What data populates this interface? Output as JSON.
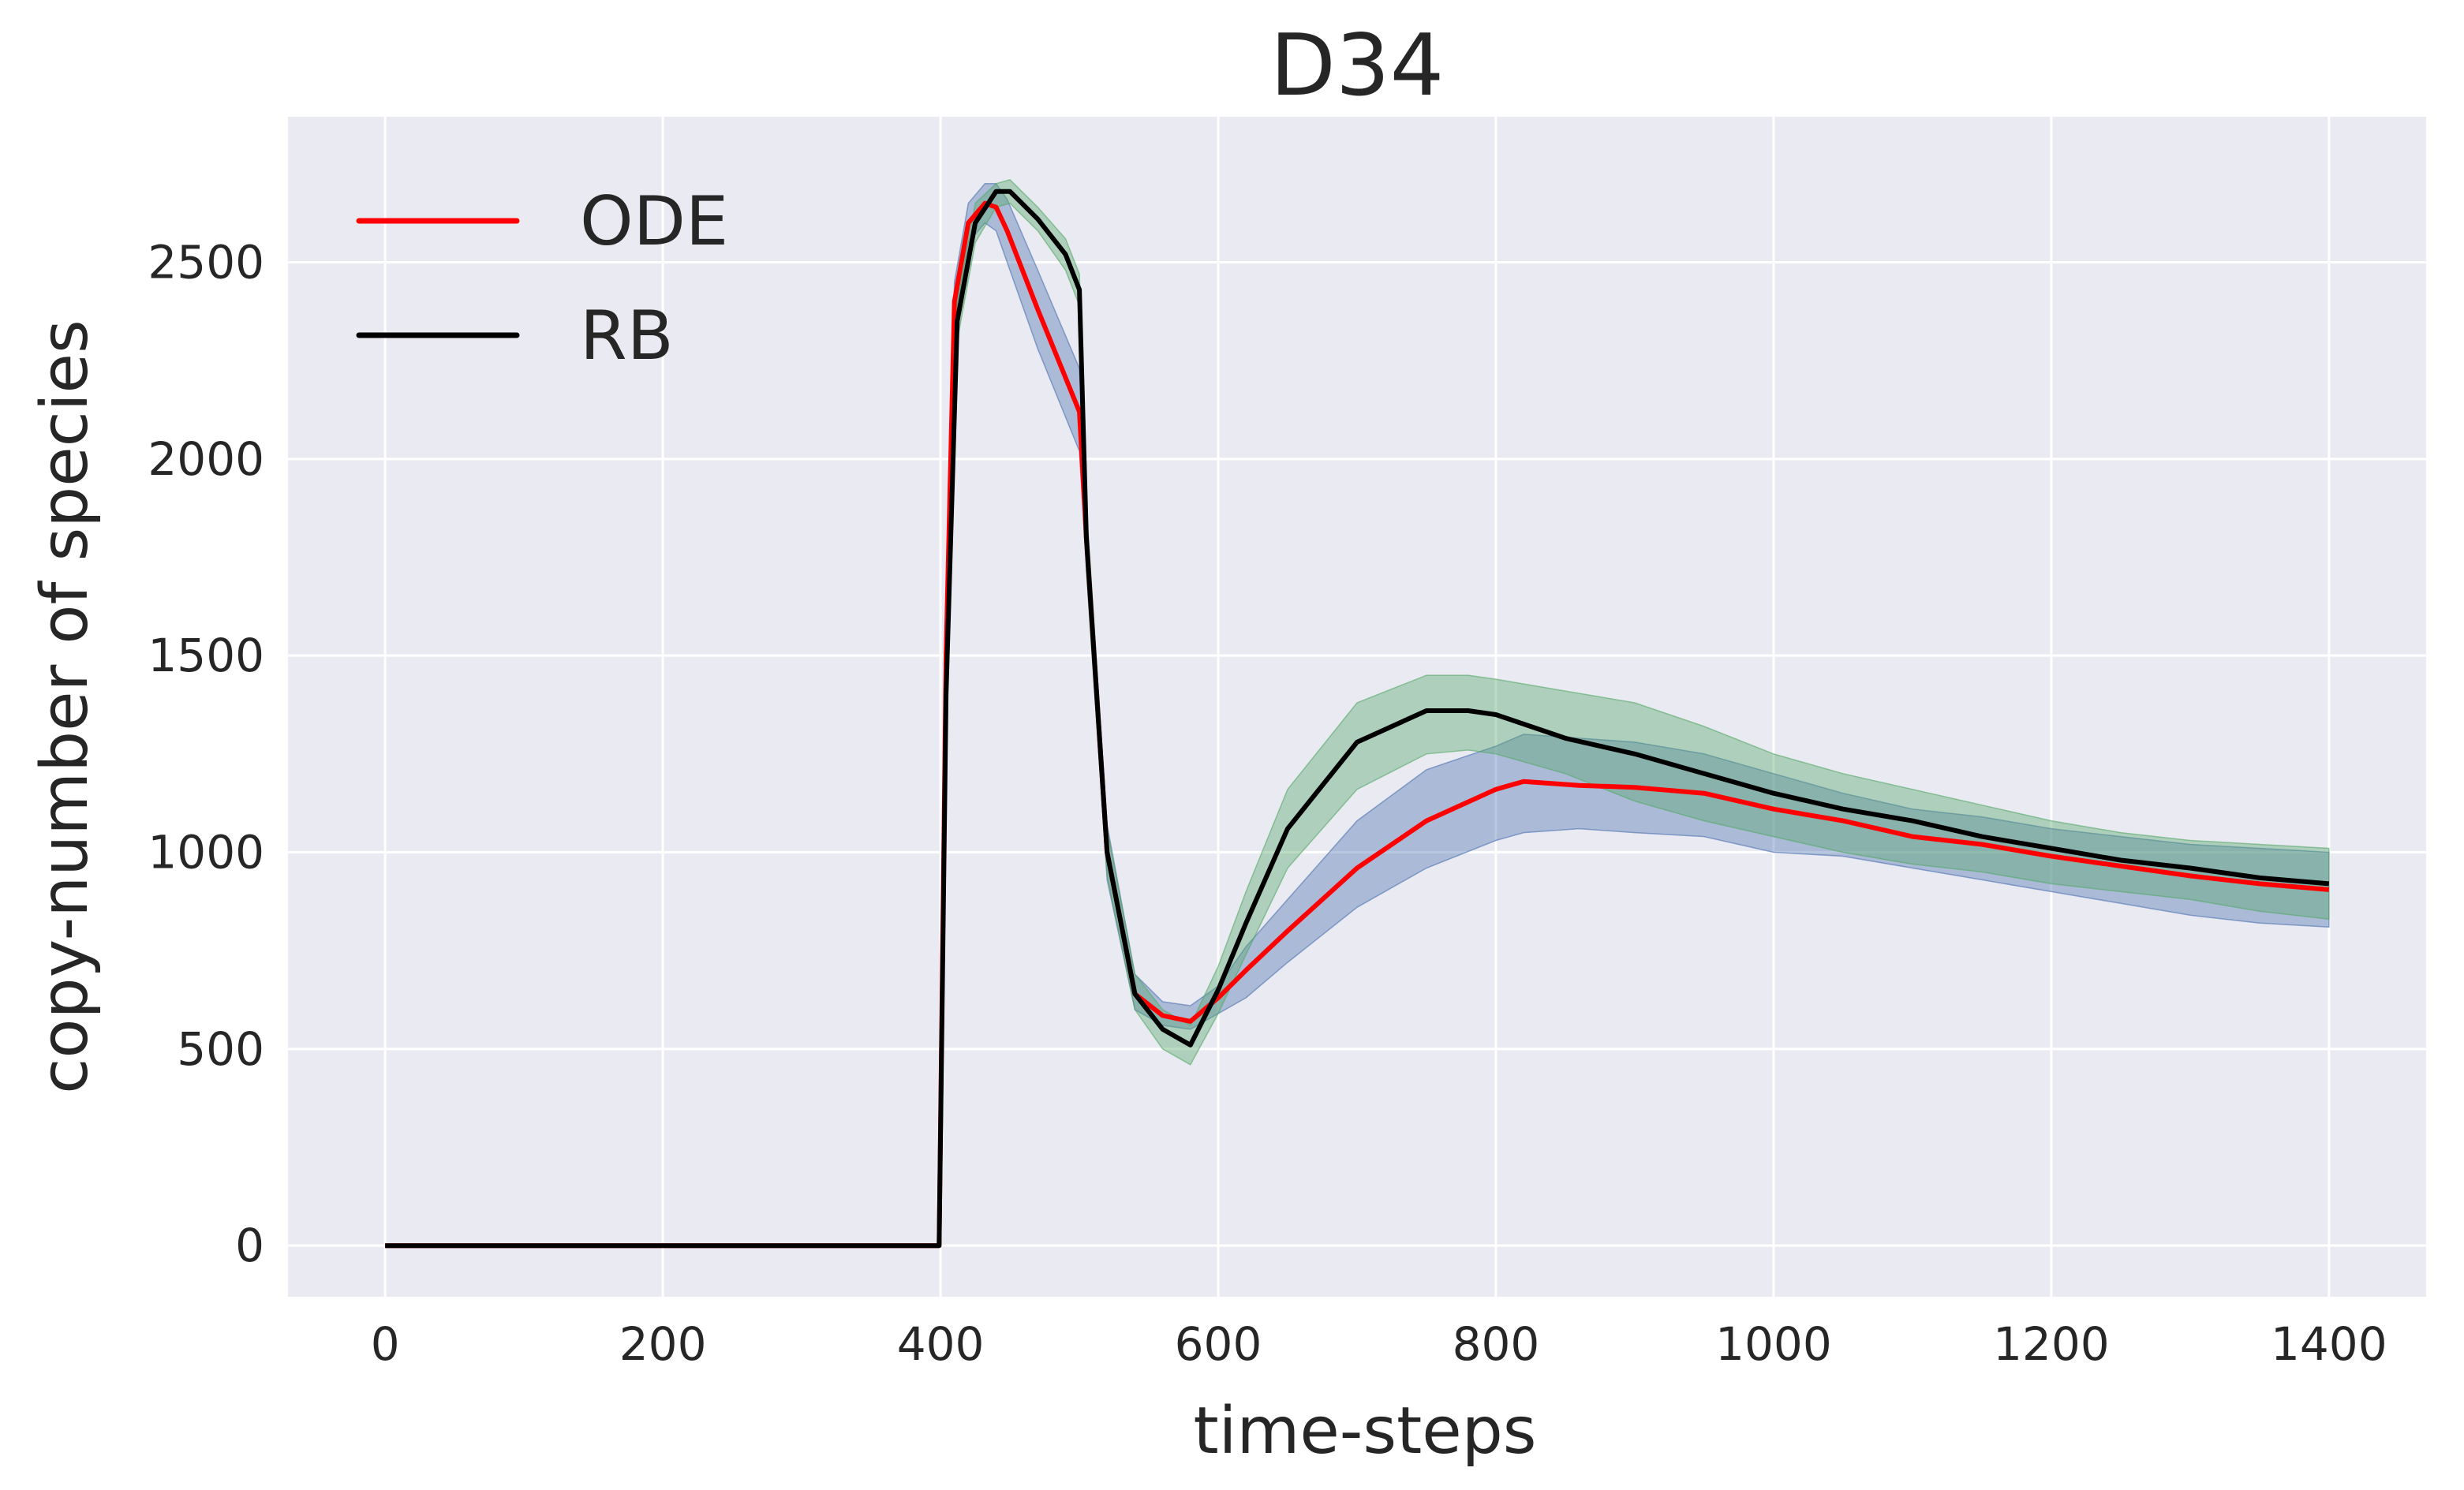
{
  "chart_data": {
    "type": "line",
    "title": "D34",
    "xlabel": "time-steps",
    "ylabel": "copy-number of species",
    "xlim": [
      -70,
      1470
    ],
    "ylim": [
      -130,
      2870
    ],
    "xticks": [
      0,
      200,
      400,
      600,
      800,
      1000,
      1200,
      1400
    ],
    "yticks": [
      0,
      500,
      1000,
      1500,
      2000,
      2500
    ],
    "grid": true,
    "legend_position": "top-left",
    "series": [
      {
        "name": "ODE",
        "color": "#ff0000",
        "band_color": "#4c72b0",
        "x": [
          0,
          399,
          404,
          410,
          420,
          432,
          440,
          448,
          470,
          500,
          505,
          520,
          540,
          560,
          580,
          600,
          620,
          650,
          700,
          750,
          800,
          820,
          860,
          900,
          950,
          1000,
          1050,
          1100,
          1150,
          1200,
          1250,
          1300,
          1350,
          1400
        ],
        "y": [
          0,
          0,
          1500,
          2400,
          2600,
          2650,
          2640,
          2580,
          2380,
          2120,
          1800,
          1000,
          640,
          585,
          570,
          630,
          700,
          800,
          960,
          1080,
          1160,
          1180,
          1170,
          1165,
          1150,
          1110,
          1080,
          1040,
          1020,
          990,
          965,
          940,
          920,
          905
        ],
        "upper": [
          0,
          0,
          1550,
          2450,
          2650,
          2700,
          2700,
          2660,
          2480,
          2230,
          1880,
          1070,
          690,
          620,
          610,
          660,
          760,
          880,
          1080,
          1210,
          1270,
          1300,
          1290,
          1280,
          1250,
          1200,
          1150,
          1110,
          1090,
          1060,
          1040,
          1020,
          1010,
          1000
        ],
        "lower": [
          0,
          0,
          1450,
          2350,
          2550,
          2600,
          2580,
          2500,
          2280,
          2020,
          1720,
          930,
          600,
          560,
          550,
          590,
          630,
          720,
          860,
          960,
          1030,
          1050,
          1060,
          1050,
          1040,
          1000,
          990,
          960,
          930,
          900,
          870,
          840,
          820,
          810
        ]
      },
      {
        "name": "RB",
        "color": "#000000",
        "band_color": "#55a868",
        "x": [
          0,
          399,
          404,
          412,
          425,
          440,
          450,
          470,
          490,
          500,
          505,
          520,
          540,
          560,
          580,
          600,
          620,
          650,
          700,
          750,
          780,
          800,
          850,
          900,
          950,
          1000,
          1050,
          1100,
          1150,
          1200,
          1250,
          1300,
          1350,
          1400
        ],
        "y": [
          0,
          0,
          1400,
          2350,
          2600,
          2680,
          2680,
          2610,
          2520,
          2430,
          1800,
          1000,
          640,
          550,
          510,
          650,
          820,
          1060,
          1280,
          1360,
          1360,
          1350,
          1290,
          1250,
          1200,
          1150,
          1110,
          1080,
          1040,
          1010,
          980,
          960,
          935,
          920
        ],
        "upper": [
          0,
          0,
          1450,
          2400,
          2650,
          2700,
          2710,
          2640,
          2560,
          2470,
          1880,
          1060,
          690,
          600,
          560,
          710,
          900,
          1160,
          1380,
          1450,
          1450,
          1440,
          1410,
          1380,
          1320,
          1250,
          1200,
          1160,
          1120,
          1080,
          1050,
          1030,
          1020,
          1010
        ],
        "lower": [
          0,
          0,
          1350,
          2300,
          2550,
          2640,
          2650,
          2580,
          2480,
          2390,
          1720,
          940,
          600,
          500,
          460,
          590,
          740,
          960,
          1160,
          1250,
          1260,
          1250,
          1200,
          1130,
          1080,
          1040,
          1000,
          970,
          950,
          920,
          900,
          880,
          850,
          830
        ]
      }
    ]
  }
}
